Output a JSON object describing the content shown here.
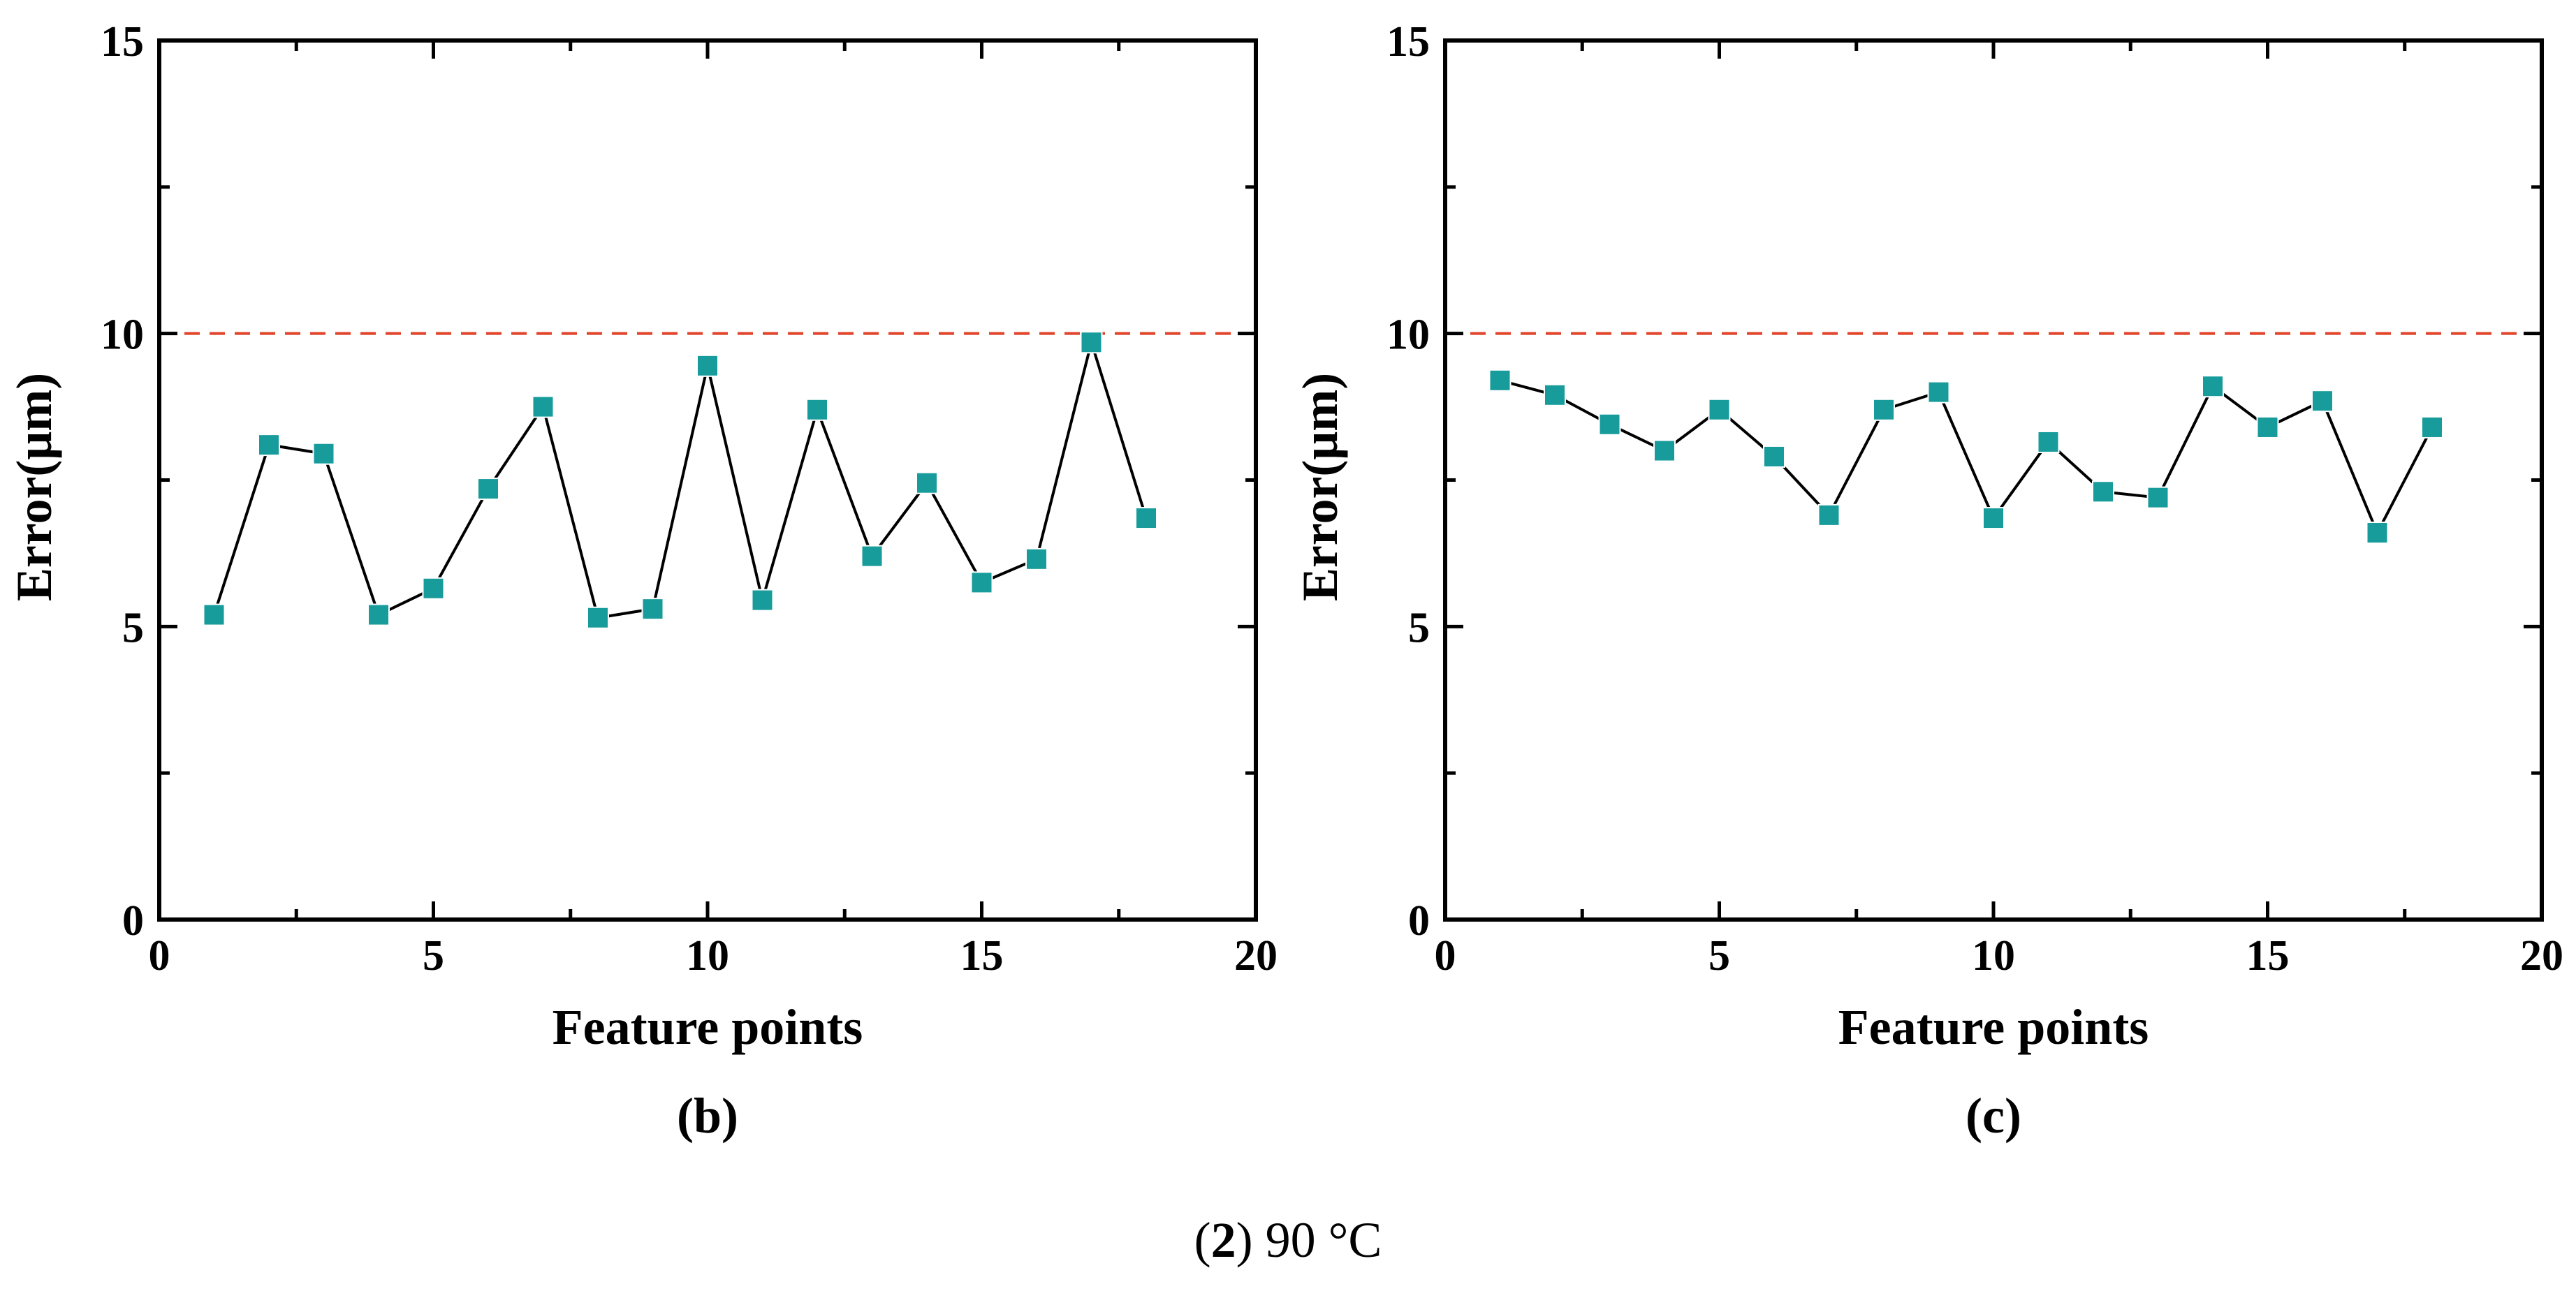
{
  "caption": {
    "prefix": "(",
    "number": "2",
    "suffix": ") 90 °C"
  },
  "colors": {
    "marker": "#179b9b",
    "line": "#000000",
    "reference": "#e0442a",
    "axis": "#000000"
  },
  "chart_data": [
    {
      "type": "line",
      "panel_label": "(b)",
      "xlabel": "Feature points",
      "ylabel": "Error(μm)",
      "xlim": [
        0,
        20
      ],
      "ylim": [
        0,
        15
      ],
      "xticks": [
        0,
        5,
        10,
        15,
        20
      ],
      "yticks": [
        0,
        5,
        10,
        15
      ],
      "reference_line": {
        "y": 10,
        "style": "dashed"
      },
      "grid": false,
      "series": [
        {
          "name": "error",
          "marker": "square",
          "x": [
            1,
            2,
            3,
            4,
            5,
            6,
            7,
            8,
            9,
            10,
            11,
            12,
            13,
            14,
            15,
            16,
            17,
            18
          ],
          "values": [
            5.2,
            8.1,
            7.95,
            5.2,
            5.65,
            7.35,
            8.75,
            5.15,
            5.3,
            9.45,
            5.45,
            8.7,
            6.2,
            7.45,
            5.75,
            6.15,
            9.85,
            6.85
          ]
        }
      ]
    },
    {
      "type": "line",
      "panel_label": "(c)",
      "xlabel": "Feature points",
      "ylabel": "Error(μm)",
      "xlim": [
        0,
        20
      ],
      "ylim": [
        0,
        15
      ],
      "xticks": [
        0,
        5,
        10,
        15,
        20
      ],
      "yticks": [
        0,
        5,
        10,
        15
      ],
      "reference_line": {
        "y": 10,
        "style": "dashed"
      },
      "grid": false,
      "series": [
        {
          "name": "error",
          "marker": "square",
          "x": [
            1,
            2,
            3,
            4,
            5,
            6,
            7,
            8,
            9,
            10,
            11,
            12,
            13,
            14,
            15,
            16,
            17,
            18
          ],
          "values": [
            9.2,
            8.95,
            8.45,
            8.0,
            8.7,
            7.9,
            6.9,
            8.7,
            9.0,
            6.85,
            8.15,
            7.3,
            7.2,
            9.1,
            8.4,
            8.85,
            6.6,
            8.4
          ]
        }
      ]
    }
  ]
}
